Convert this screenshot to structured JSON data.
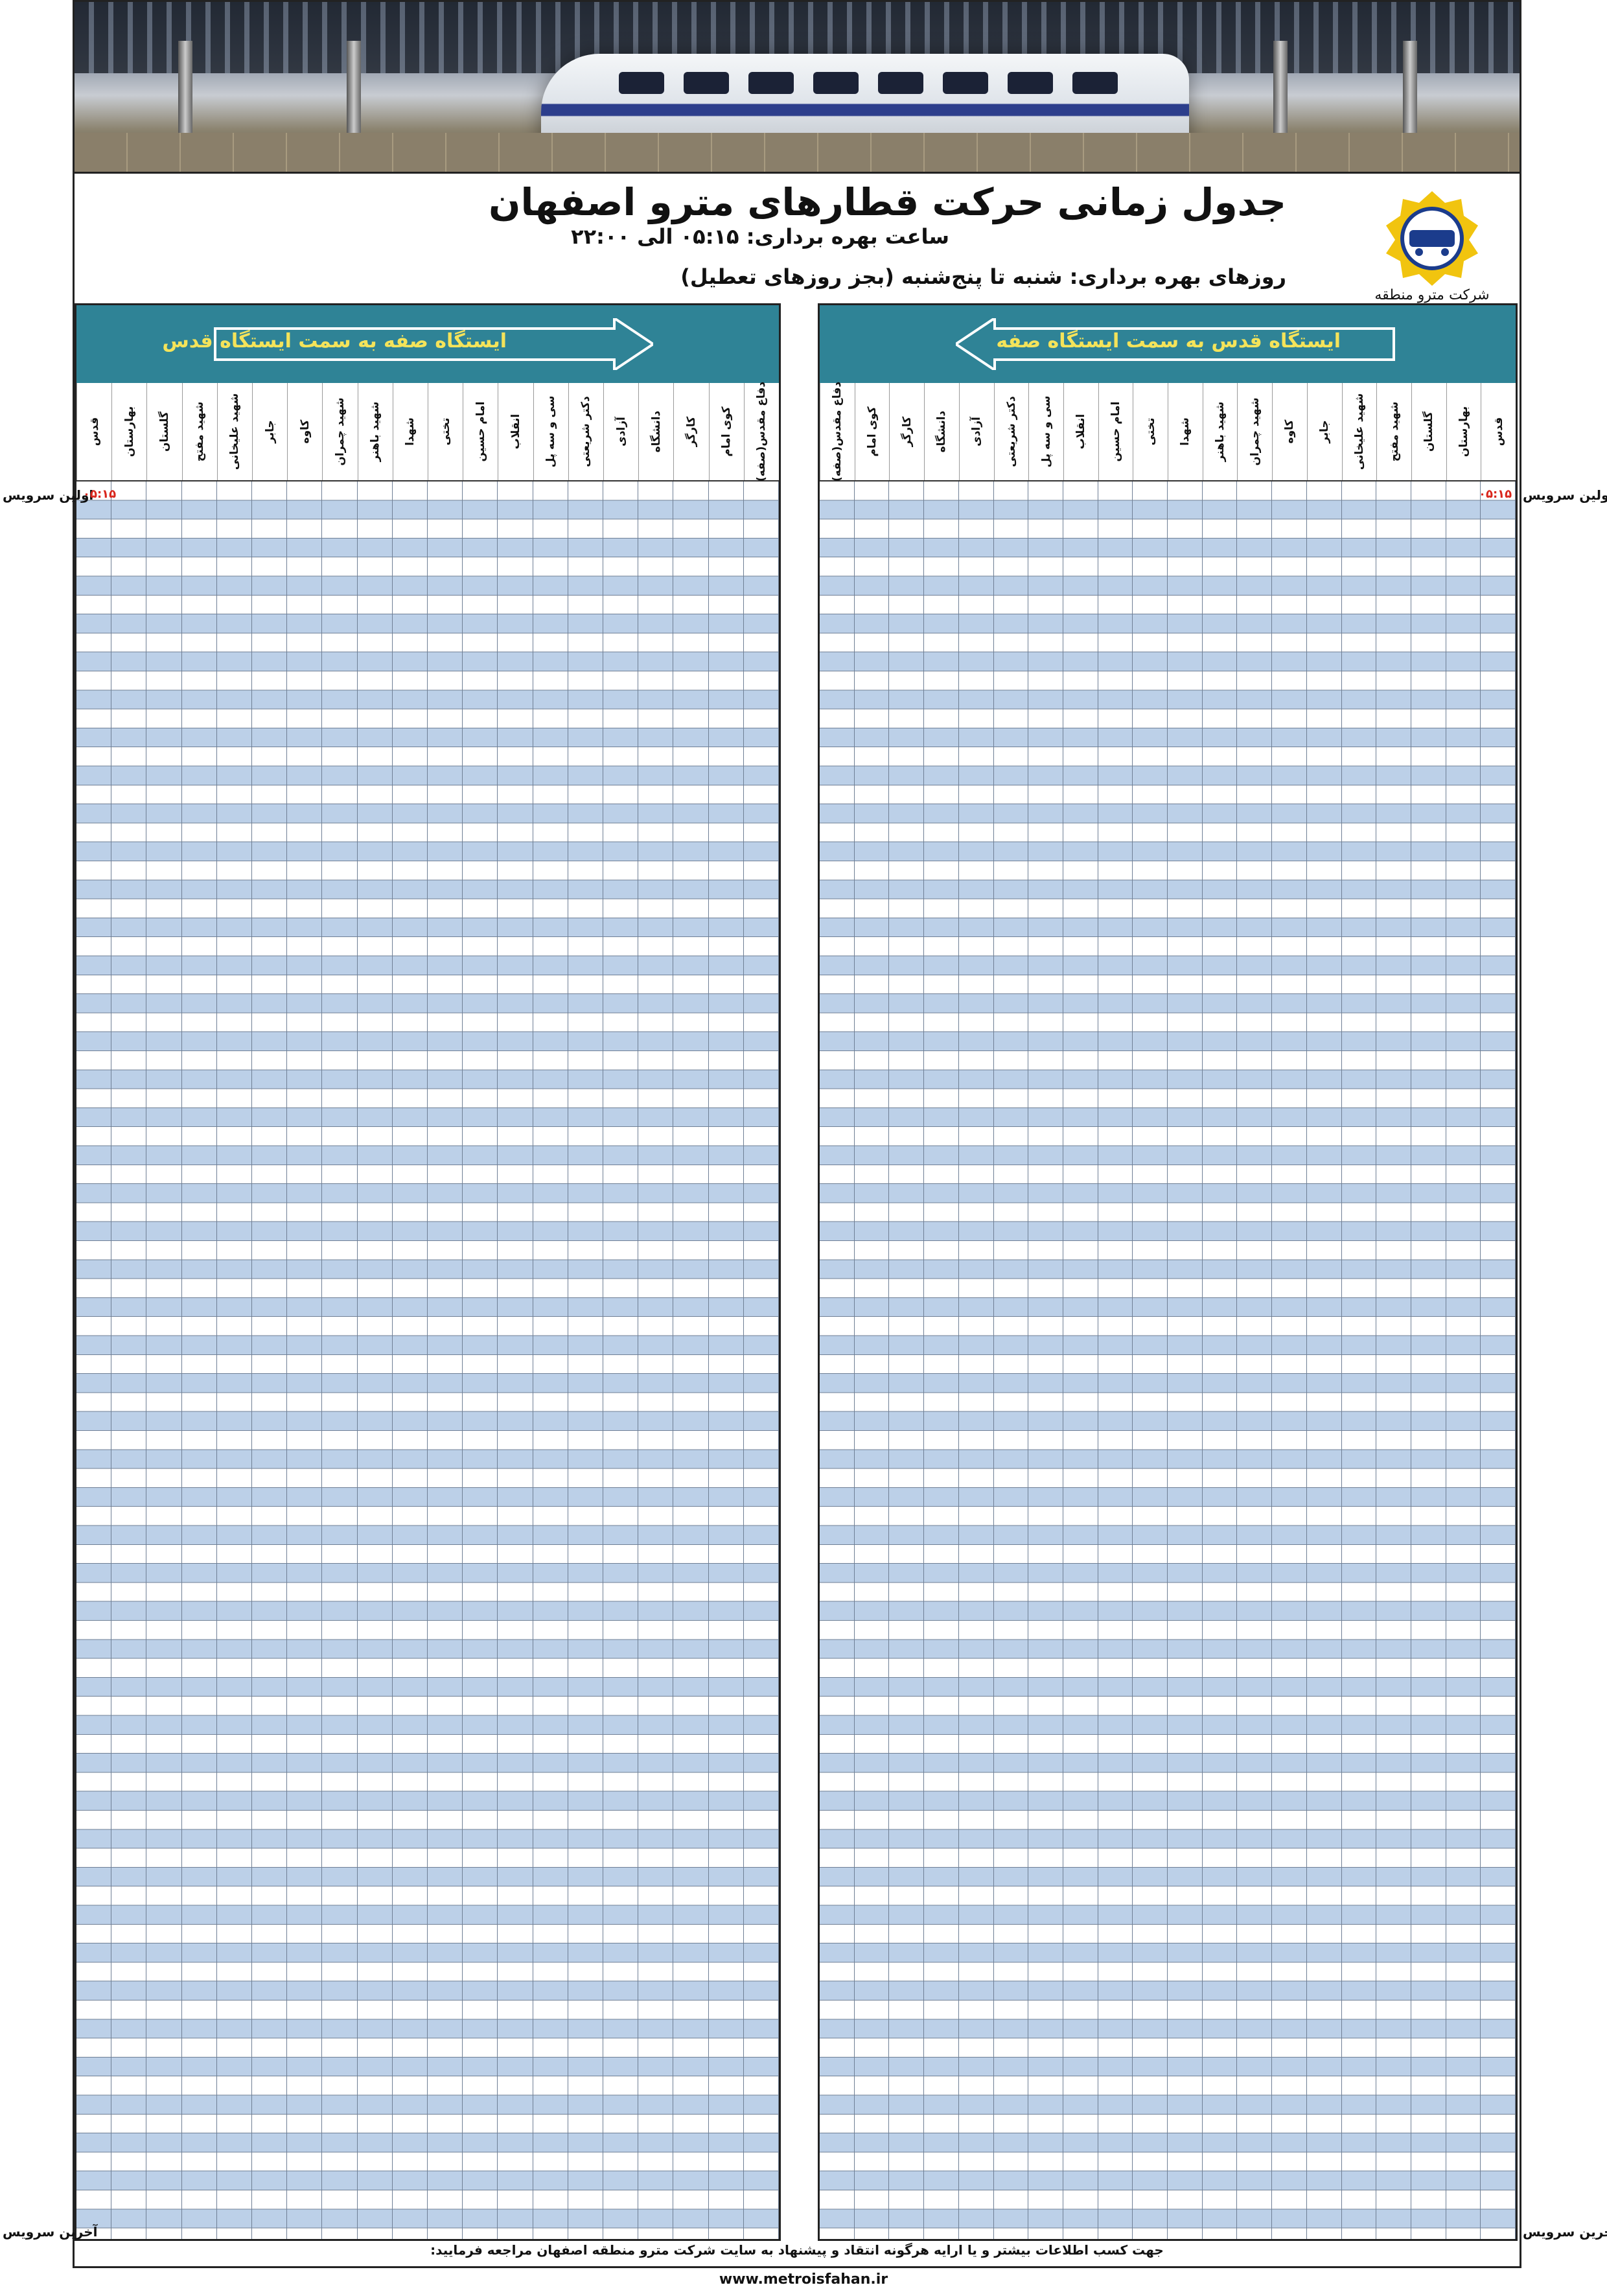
{
  "header": {
    "title": "جدول زمانی حرکت قطارهای مترو اصفهان",
    "hours": "ساعت بهره برداری: ۰۵:۱۵ الی ۲۲:۰۰",
    "days": "روزهای بهره برداری: شنبه تا پنج‌شنبه (بجز روزهای تعطیل)",
    "company": "شرکت مترو منطقه اصفهان"
  },
  "right_panel": {
    "direction": "ایستگاه قدس به سمت ایستگاه صفه",
    "stations": [
      "قدس",
      "بهارستان",
      "گلستان",
      "شهید مفتح",
      "شهید علیخانی",
      "جابر",
      "کاوه",
      "شهید چمران",
      "شهید باهنر",
      "شهدا",
      "تختی",
      "امام حسین",
      "انقلاب",
      "سی و سه پل",
      "دکتر شریعتی",
      "آزادی",
      "دانشگاه",
      "کارگر",
      "کوی امام",
      "دفاع مقدس(صفه)"
    ],
    "first_time": "۰۵:۱۵"
  },
  "left_panel": {
    "direction": "ایستگاه صفه به سمت ایستگاه قدس",
    "stations": [
      "دفاع مقدس(صفه)",
      "کوی امام",
      "کارگر",
      "دانشگاه",
      "آزادی",
      "دکتر شریعتی",
      "سی و سه پل",
      "انقلاب",
      "امام حسین",
      "تختی",
      "شهدا",
      "شهید باهنر",
      "شهید چمران",
      "کاوه",
      "جابر",
      "شهید علیخانی",
      "شهید مفتح",
      "گلستان",
      "بهارستان",
      "قدس"
    ],
    "first_time": "۰۵:۱۵"
  },
  "labels": {
    "first_service": "اولین سرویس",
    "last_service": "آخرین سرویس"
  },
  "footer": {
    "note": "جهت کسب اطلاعات بیشتر و یا ارایه هرگونه انتقاد و پیشنهاد به سایت شرکت مترو منطقه اصفهان مراجعه فرمایید:",
    "url": "www.metroisfahan.ir"
  }
}
